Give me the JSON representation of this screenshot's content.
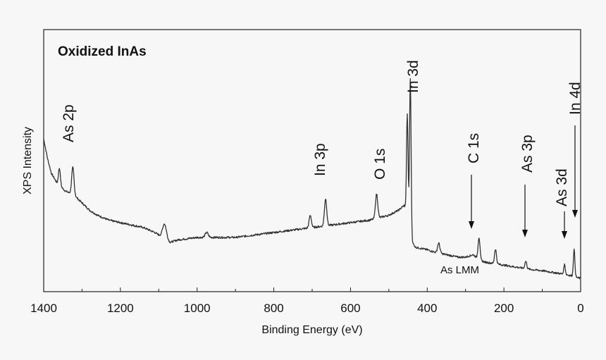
{
  "chart_data": {
    "type": "line",
    "title": "Oxidized InAs",
    "xlabel": "Binding Energy (eV)",
    "ylabel": "XPS Intensity",
    "xlim": [
      1400,
      0
    ],
    "xticks": [
      1400,
      1200,
      1000,
      800,
      600,
      400,
      200,
      0
    ],
    "x_reversed": true,
    "grid": false,
    "legend": "none",
    "line_color": "#333333",
    "baseline": [
      [
        1400,
        0.58
      ],
      [
        1390,
        0.5
      ],
      [
        1380,
        0.44
      ],
      [
        1365,
        0.4
      ],
      [
        1345,
        0.37
      ],
      [
        1320,
        0.35
      ],
      [
        1300,
        0.32
      ],
      [
        1280,
        0.29
      ],
      [
        1260,
        0.27
      ],
      [
        1230,
        0.25
      ],
      [
        1200,
        0.24
      ],
      [
        1170,
        0.23
      ],
      [
        1140,
        0.22
      ],
      [
        1110,
        0.2
      ],
      [
        1080,
        0.17
      ],
      [
        1070,
        0.16
      ],
      [
        1050,
        0.17
      ],
      [
        1000,
        0.18
      ],
      [
        950,
        0.18
      ],
      [
        900,
        0.18
      ],
      [
        850,
        0.19
      ],
      [
        800,
        0.2
      ],
      [
        750,
        0.21
      ],
      [
        700,
        0.22
      ],
      [
        650,
        0.23
      ],
      [
        600,
        0.24
      ],
      [
        550,
        0.25
      ],
      [
        500,
        0.27
      ],
      [
        475,
        0.29
      ],
      [
        460,
        0.31
      ],
      [
        450,
        0.27
      ],
      [
        440,
        0.16
      ],
      [
        430,
        0.14
      ],
      [
        400,
        0.13
      ],
      [
        380,
        0.12
      ],
      [
        350,
        0.11
      ],
      [
        320,
        0.1
      ],
      [
        300,
        0.1
      ],
      [
        280,
        0.11
      ],
      [
        265,
        0.09
      ],
      [
        250,
        0.08
      ],
      [
        230,
        0.075
      ],
      [
        210,
        0.07
      ],
      [
        190,
        0.065
      ],
      [
        170,
        0.06
      ],
      [
        150,
        0.055
      ],
      [
        130,
        0.05
      ],
      [
        100,
        0.045
      ],
      [
        80,
        0.04
      ],
      [
        60,
        0.035
      ],
      [
        40,
        0.03
      ],
      [
        25,
        0.025
      ],
      [
        15,
        0.02
      ],
      [
        5,
        0.015
      ]
    ],
    "peaks": [
      {
        "x": 1359,
        "height": 0.07,
        "width": 2.5
      },
      {
        "x": 1324,
        "height": 0.11,
        "width": 3
      },
      {
        "x": 1085,
        "height": 0.06,
        "width": 5
      },
      {
        "x": 975,
        "height": 0.02,
        "width": 4
      },
      {
        "x": 705,
        "height": 0.05,
        "width": 3
      },
      {
        "x": 665,
        "height": 0.11,
        "width": 3
      },
      {
        "x": 532,
        "height": 0.1,
        "width": 3
      },
      {
        "x": 452,
        "height": 0.4,
        "width": 2
      },
      {
        "x": 444,
        "height": 0.62,
        "width": 2
      },
      {
        "x": 370,
        "height": 0.04,
        "width": 3
      },
      {
        "x": 265,
        "height": 0.09,
        "width": 2.5
      },
      {
        "x": 222,
        "height": 0.06,
        "width": 2.5
      },
      {
        "x": 143,
        "height": 0.03,
        "width": 2.5
      },
      {
        "x": 42,
        "height": 0.04,
        "width": 2
      },
      {
        "x": 17,
        "height": 0.11,
        "width": 2
      }
    ],
    "annotations": [
      {
        "text": "As 2p",
        "x": 1320
      },
      {
        "text": "In 3p",
        "x": 680
      },
      {
        "text": "O 1s",
        "x": 540
      },
      {
        "text": "In 3d",
        "x": 450
      },
      {
        "text": "C 1s",
        "x": 285
      },
      {
        "text": "As 3p",
        "x": 143
      },
      {
        "text": "As 3d",
        "x": 42
      },
      {
        "text": "In 4d",
        "x": 17
      },
      {
        "text": "As LMM",
        "x": 230
      }
    ]
  }
}
